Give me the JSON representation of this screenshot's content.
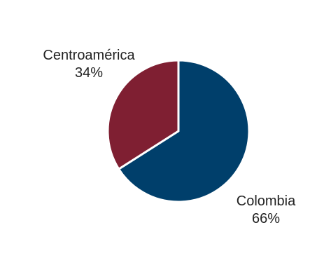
{
  "chart_data": {
    "type": "pie",
    "title": "",
    "slices": [
      {
        "label": "Colombia",
        "value": 66,
        "value_label": "66%",
        "color": "#003f6b"
      },
      {
        "label": "Centroamérica",
        "value": 34,
        "value_label": "34%",
        "color": "#7f1f32"
      }
    ],
    "start_angle": "12 o'clock",
    "direction": "clockwise",
    "legend": "none",
    "slice_border_color": "#ffffff"
  }
}
